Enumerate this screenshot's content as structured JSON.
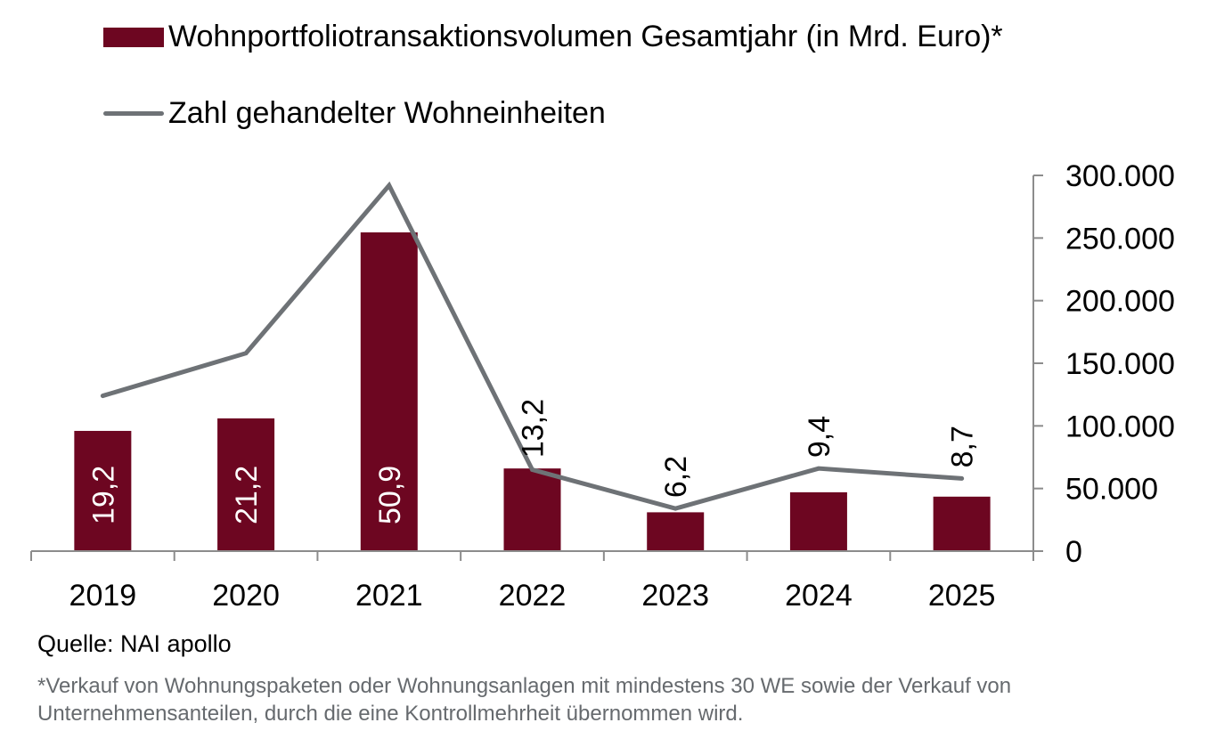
{
  "chart_data": {
    "type": "bar",
    "title": "",
    "categories": [
      "2019",
      "2020",
      "2021",
      "2022",
      "2023",
      "2024",
      "2025"
    ],
    "series": [
      {
        "name": "Wohnportfoliotransaktionsvolumen Gesamtjahr (in Mrd. Euro)*",
        "type": "bar",
        "axis": "primary-hidden",
        "color": "#6d0621",
        "values": [
          19.2,
          21.2,
          50.9,
          13.2,
          6.2,
          9.4,
          8.7
        ],
        "labels": [
          "19,2",
          "21,2",
          "50,9",
          "13,2",
          "6,2",
          "9,4",
          "8,7"
        ]
      },
      {
        "name": "Zahl gehandelter Wohneinheiten",
        "type": "line",
        "axis": "secondary",
        "color": "#6e7276",
        "values": [
          124000,
          158000,
          292000,
          65000,
          34000,
          66000,
          58000
        ]
      }
    ],
    "primary_ylim": [
      0,
      60
    ],
    "secondary_ylim": [
      0,
      300000
    ],
    "secondary_ticks": [
      "0",
      "50.000",
      "100.000",
      "150.000",
      "200.000",
      "250.000",
      "300.000"
    ],
    "xlabel": "",
    "ylabel": "",
    "grid": false,
    "legend_position": "top-left"
  },
  "legend": {
    "bar_label": "Wohnportfoliotransaktionsvolumen Gesamtjahr (in Mrd. Euro)*",
    "line_label": "Zahl gehandelter Wohneinheiten"
  },
  "source": "Quelle: NAI apollo",
  "footnote": "*Verkauf von Wohnungspaketen oder Wohnungsanlagen mit mindestens 30 WE sowie der Verkauf von Unternehmensanteilen, durch die eine Kontrollmehrheit übernommen wird."
}
